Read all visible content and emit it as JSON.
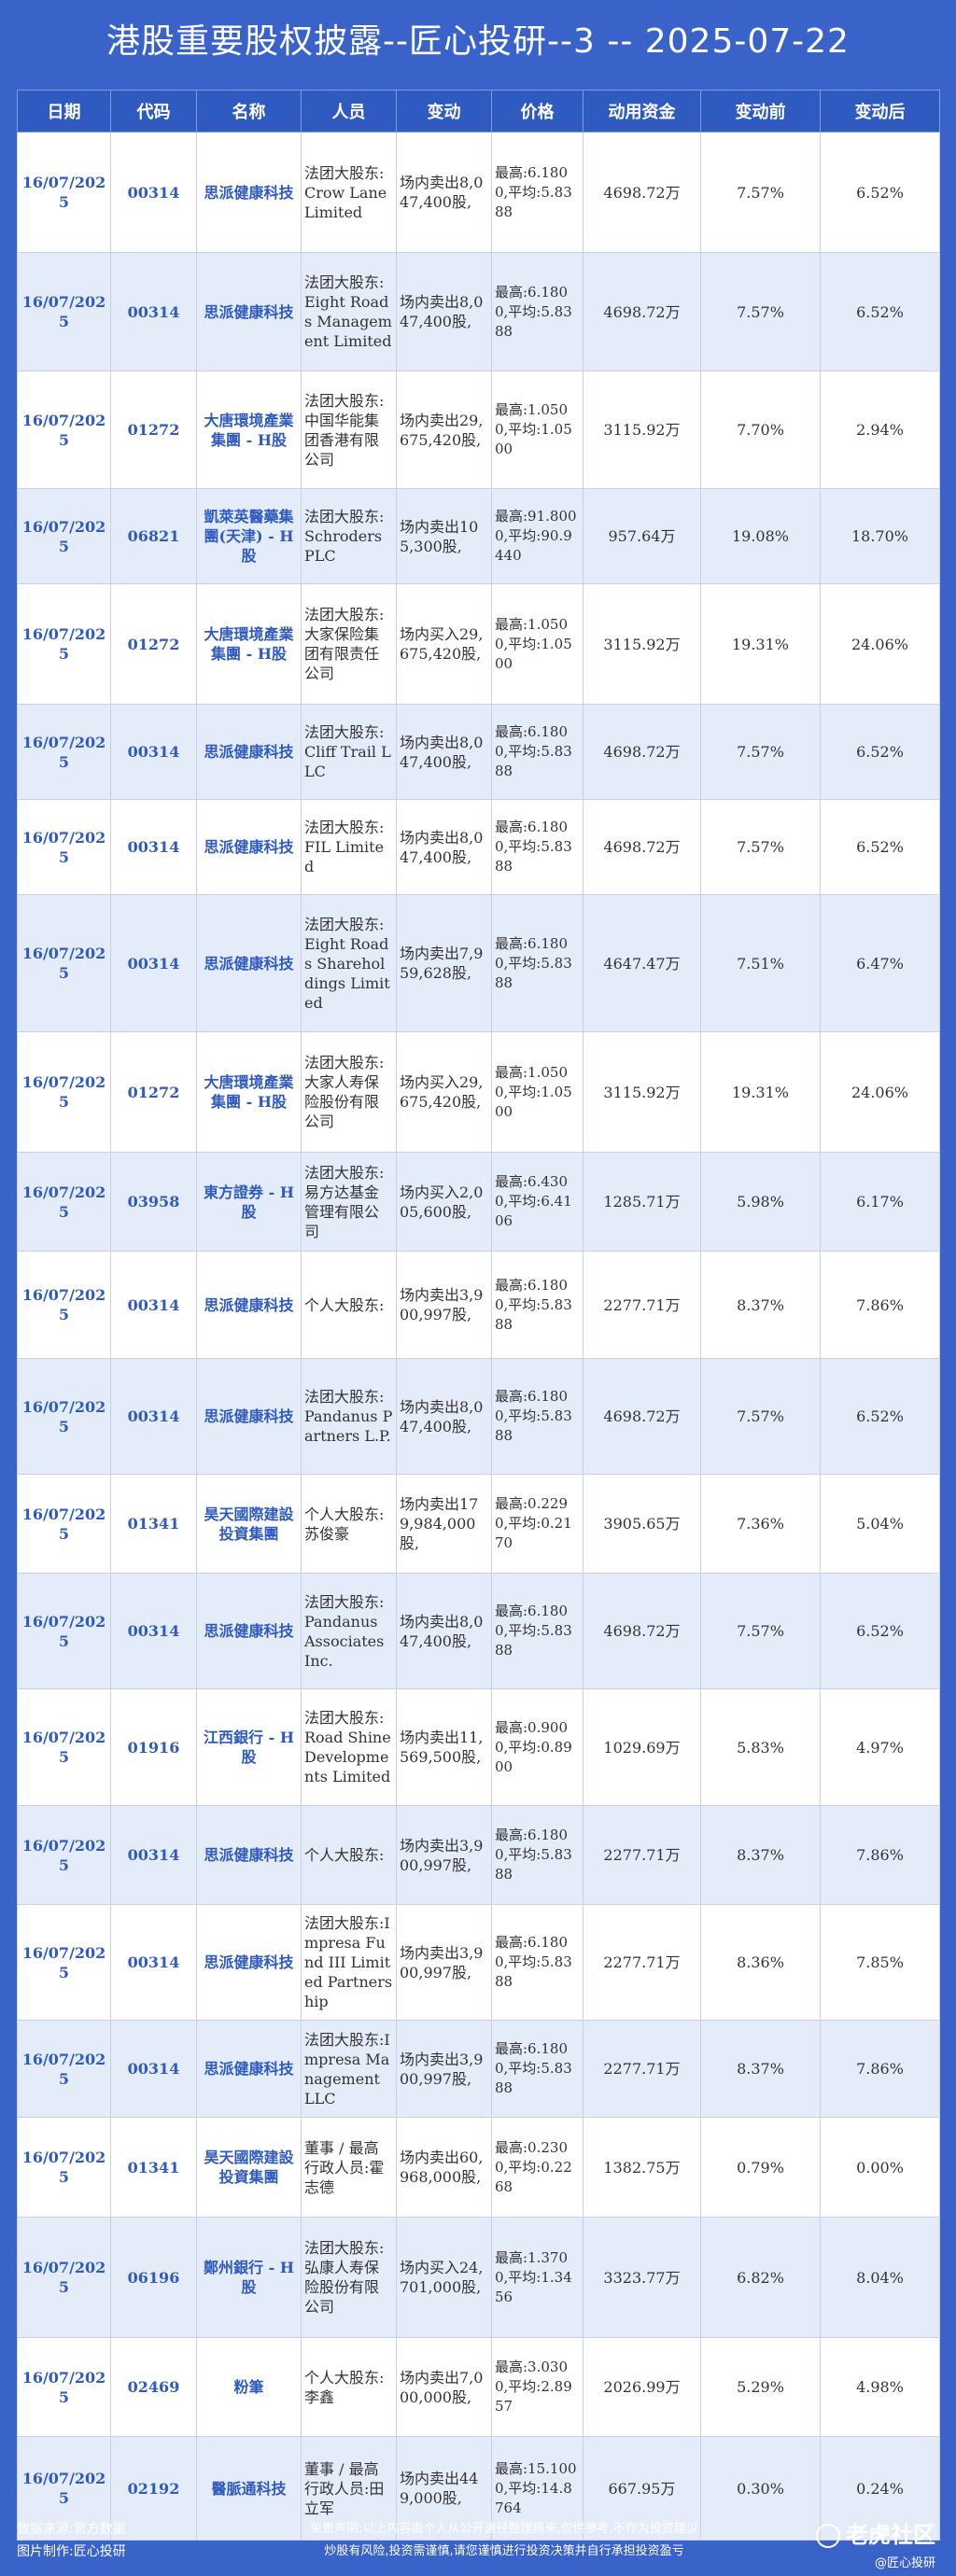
{
  "title": "港股重要股权披露--匠心投研--3 -- 2025-07-22",
  "headers": [
    "日期",
    "代码",
    "名称",
    "人员",
    "变动",
    "价格",
    "动用资金",
    "变动前",
    "变动后"
  ],
  "rows": [
    {
      "date": "16/07/2025",
      "code": "00314",
      "name": "思派健康科技",
      "person": "法团大股东:Crow Lane Limited",
      "change": "场内卖出8,047,400股,",
      "price": "最高:6.1800,平均:5.8388",
      "funds": "4698.72万",
      "before": "7.57%",
      "after": "6.52%"
    },
    {
      "date": "16/07/2025",
      "code": "00314",
      "name": "思派健康科技",
      "person": "法团大股东:Eight Roads Management Limited",
      "change": "场内卖出8,047,400股,",
      "price": "最高:6.1800,平均:5.8388",
      "funds": "4698.72万",
      "before": "7.57%",
      "after": "6.52%"
    },
    {
      "date": "16/07/2025",
      "code": "01272",
      "name": "大唐環境產業集團 - H股",
      "person": "法团大股东:中国华能集团香港有限公司",
      "change": "场内卖出29,675,420股,",
      "price": "最高:1.0500,平均:1.0500",
      "funds": "3115.92万",
      "before": "7.70%",
      "after": "2.94%"
    },
    {
      "date": "16/07/2025",
      "code": "06821",
      "name": "凱萊英醫藥集團(天津) - H股",
      "person": "法团大股东:Schroders PLC",
      "change": "场内卖出105,300股,",
      "price": "最高:91.8000,平均:90.9440",
      "funds": "957.64万",
      "before": "19.08%",
      "after": "18.70%"
    },
    {
      "date": "16/07/2025",
      "code": "01272",
      "name": "大唐環境產業集團 - H股",
      "person": "法团大股东:大家保险集团有限责任公司",
      "change": "场内买入29,675,420股,",
      "price": "最高:1.0500,平均:1.0500",
      "funds": "3115.92万",
      "before": "19.31%",
      "after": "24.06%"
    },
    {
      "date": "16/07/2025",
      "code": "00314",
      "name": "思派健康科技",
      "person": "法团大股东:Cliff Trail LLC",
      "change": "场内卖出8,047,400股,",
      "price": "最高:6.1800,平均:5.8388",
      "funds": "4698.72万",
      "before": "7.57%",
      "after": "6.52%"
    },
    {
      "date": "16/07/2025",
      "code": "00314",
      "name": "思派健康科技",
      "person": "法团大股东:FIL Limited",
      "change": "场内卖出8,047,400股,",
      "price": "最高:6.1800,平均:5.8388",
      "funds": "4698.72万",
      "before": "7.57%",
      "after": "6.52%"
    },
    {
      "date": "16/07/2025",
      "code": "00314",
      "name": "思派健康科技",
      "person": "法团大股东:Eight Roads Shareholdings Limited",
      "change": "场内卖出7,959,628股,",
      "price": "最高:6.1800,平均:5.8388",
      "funds": "4647.47万",
      "before": "7.51%",
      "after": "6.47%"
    },
    {
      "date": "16/07/2025",
      "code": "01272",
      "name": "大唐環境產業集團 - H股",
      "person": "法团大股东:大家人寿保险股份有限公司",
      "change": "场内买入29,675,420股,",
      "price": "最高:1.0500,平均:1.0500",
      "funds": "3115.92万",
      "before": "19.31%",
      "after": "24.06%"
    },
    {
      "date": "16/07/2025",
      "code": "03958",
      "name": "東方證券 - H股",
      "person": "法团大股东:易方达基金管理有限公司",
      "change": "场内买入2,005,600股,",
      "price": "最高:6.4300,平均:6.4106",
      "funds": "1285.71万",
      "before": "5.98%",
      "after": "6.17%"
    },
    {
      "date": "16/07/2025",
      "code": "00314",
      "name": "思派健康科技",
      "person": "个人大股东:",
      "change": "场内卖出3,900,997股,",
      "price": "最高:6.1800,平均:5.8388",
      "funds": "2277.71万",
      "before": "8.37%",
      "after": "7.86%"
    },
    {
      "date": "16/07/2025",
      "code": "00314",
      "name": "思派健康科技",
      "person": "法团大股东:Pandanus Partners L.P.",
      "change": "场内卖出8,047,400股,",
      "price": "最高:6.1800,平均:5.8388",
      "funds": "4698.72万",
      "before": "7.57%",
      "after": "6.52%"
    },
    {
      "date": "16/07/2025",
      "code": "01341",
      "name": "昊天國際建設投資集團",
      "person": "个人大股东:苏俊豪",
      "change": "场内卖出179,984,000股,",
      "price": "最高:0.2290,平均:0.2170",
      "funds": "3905.65万",
      "before": "7.36%",
      "after": "5.04%"
    },
    {
      "date": "16/07/2025",
      "code": "00314",
      "name": "思派健康科技",
      "person": "法团大股东:Pandanus Associates Inc.",
      "change": "场内卖出8,047,400股,",
      "price": "最高:6.1800,平均:5.8388",
      "funds": "4698.72万",
      "before": "7.57%",
      "after": "6.52%"
    },
    {
      "date": "16/07/2025",
      "code": "01916",
      "name": "江西銀行 - H股",
      "person": "法团大股东:Road Shine Developments Limited",
      "change": "场内卖出11,569,500股,",
      "price": "最高:0.9000,平均:0.8900",
      "funds": "1029.69万",
      "before": "5.83%",
      "after": "4.97%"
    },
    {
      "date": "16/07/2025",
      "code": "00314",
      "name": "思派健康科技",
      "person": "个人大股东:",
      "change": "场内卖出3,900,997股,",
      "price": "最高:6.1800,平均:5.8388",
      "funds": "2277.71万",
      "before": "8.37%",
      "after": "7.86%"
    },
    {
      "date": "16/07/2025",
      "code": "00314",
      "name": "思派健康科技",
      "person": "法团大股东:Impresa Fund III Limited Partnership",
      "change": "场内卖出3,900,997股,",
      "price": "最高:6.1800,平均:5.8388",
      "funds": "2277.71万",
      "before": "8.36%",
      "after": "7.85%"
    },
    {
      "date": "16/07/2025",
      "code": "00314",
      "name": "思派健康科技",
      "person": "法团大股东:Impresa Management LLC",
      "change": "场内卖出3,900,997股,",
      "price": "最高:6.1800,平均:5.8388",
      "funds": "2277.71万",
      "before": "8.37%",
      "after": "7.86%"
    },
    {
      "date": "16/07/2025",
      "code": "01341",
      "name": "昊天國際建設投資集團",
      "person": "董事 / 最高行政人员:霍志德",
      "change": "场内卖出60,968,000股,",
      "price": "最高:0.2300,平均:0.2268",
      "funds": "1382.75万",
      "before": "0.79%",
      "after": "0.00%"
    },
    {
      "date": "16/07/2025",
      "code": "06196",
      "name": "鄭州銀行 - H股",
      "person": "法团大股东:弘康人寿保险股份有限公司",
      "change": "场内买入24,701,000股,",
      "price": "最高:1.3700,平均:1.3456",
      "funds": "3323.77万",
      "before": "6.82%",
      "after": "8.04%"
    },
    {
      "date": "16/07/2025",
      "code": "02469",
      "name": "粉筆",
      "person": "个人大股东:李鑫",
      "change": "场内卖出7,000,000股,",
      "price": "最高:3.0300,平均:2.8957",
      "funds": "2026.99万",
      "before": "5.29%",
      "after": "4.98%"
    },
    {
      "date": "16/07/2025",
      "code": "02192",
      "name": "醫脈通科技",
      "person": "董事 / 最高行政人员:田立军",
      "change": "场内卖出449,000股,",
      "price": "最高:15.1000,平均:14.8764",
      "funds": "667.95万",
      "before": "0.30%",
      "after": "0.24%"
    }
  ],
  "footer": {
    "source": "数据来源:官方数据",
    "maker": "图片制作:匠心投研",
    "disclaimer1": "免责声明:以上内容由个人从公开途径整理得来,仅供参考,不作为投资建议",
    "disclaimer2": "炒股有风险,投资需谨慎,请您谨慎进行投资决策并自行承担投资盈亏",
    "brand": "老虎社区",
    "handle": "@匠心投研"
  }
}
